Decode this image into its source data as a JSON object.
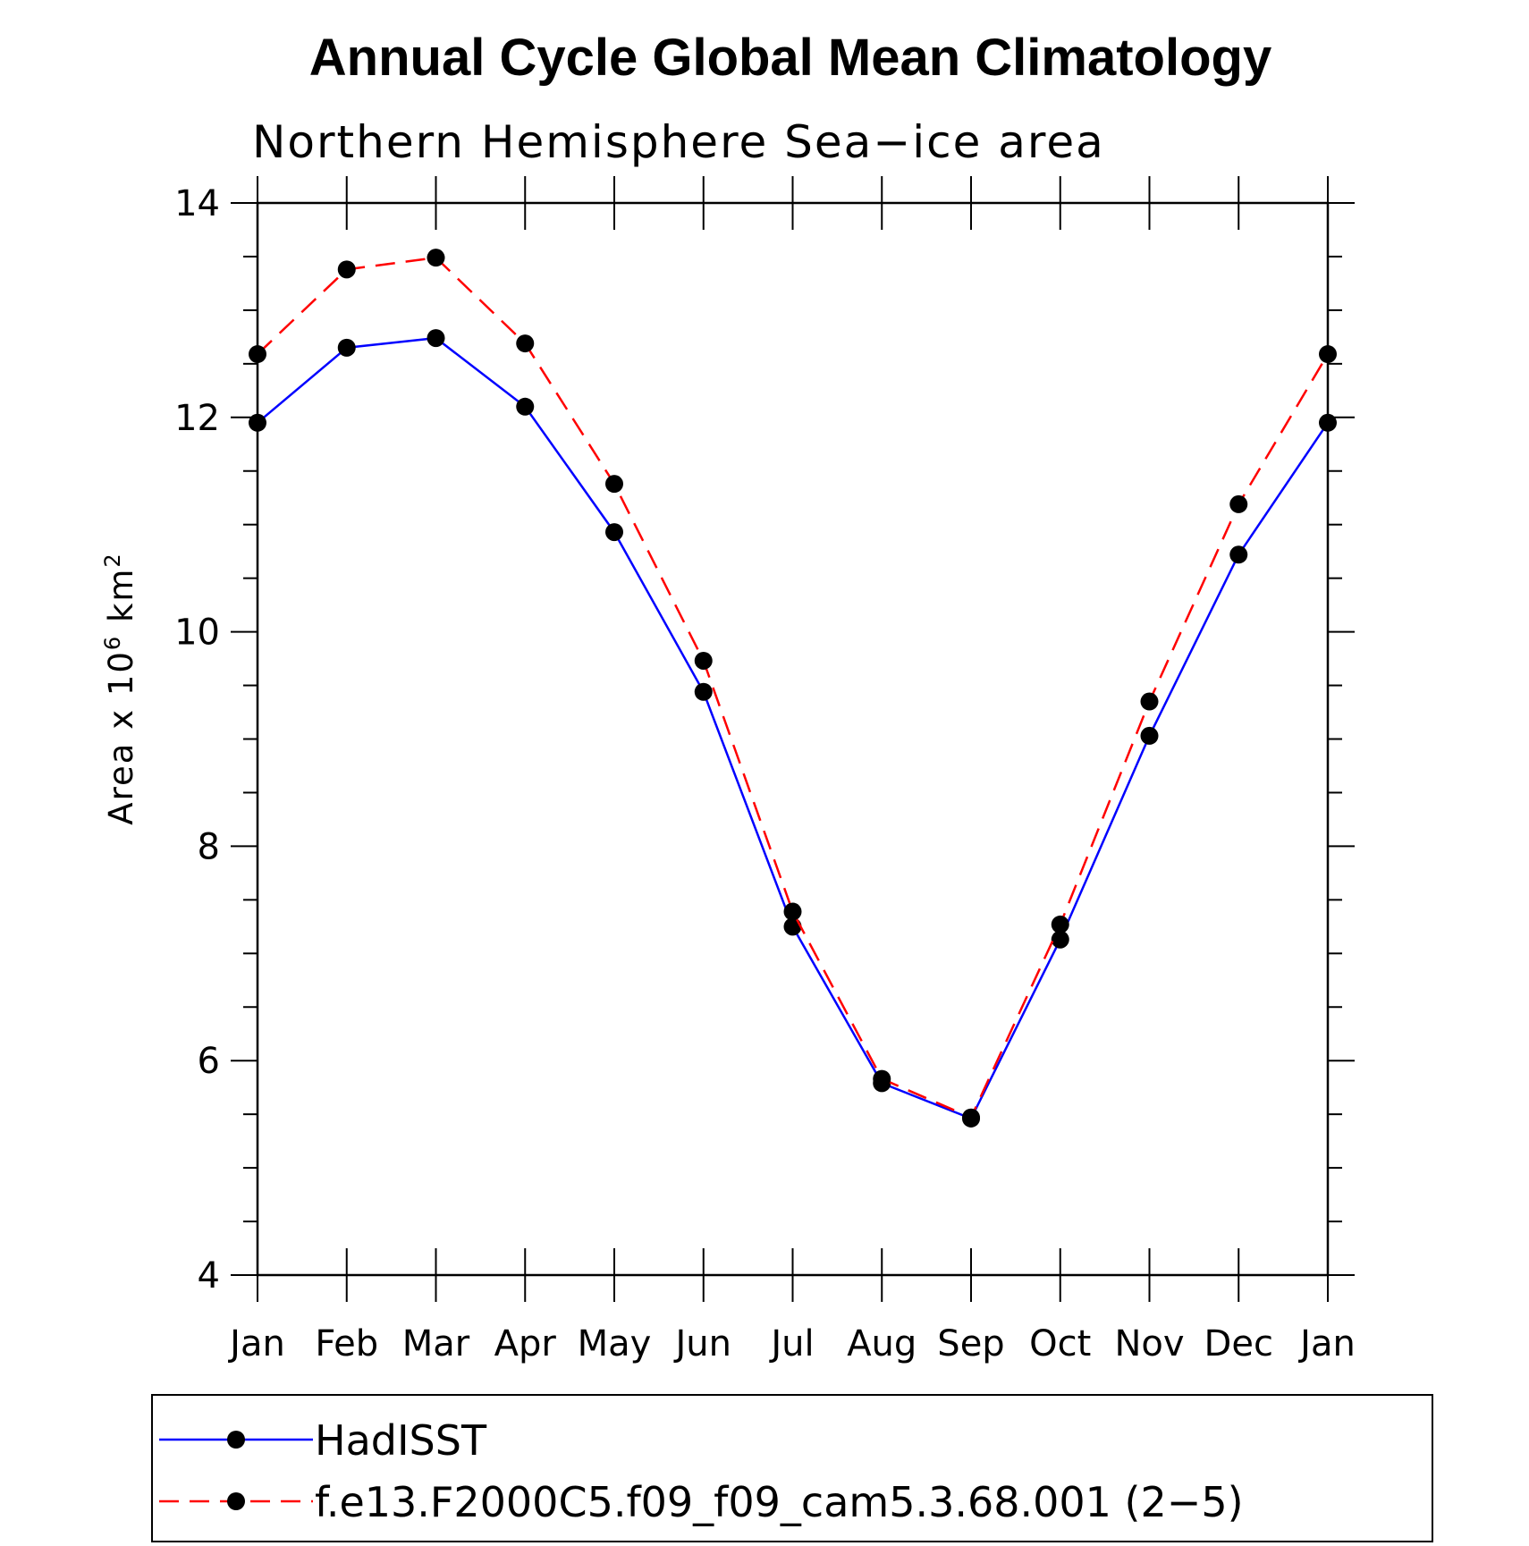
{
  "chart_data": {
    "type": "line",
    "title": "Annual Cycle Global Mean Climatology",
    "subtitle": "Northern Hemisphere Sea−ice area",
    "ylabel_prefix": "Area x 10",
    "ylabel_exp1": "6",
    "ylabel_unit": " km",
    "ylabel_exp2": "2",
    "x": [
      "Jan",
      "Feb",
      "Mar",
      "Apr",
      "May",
      "Jun",
      "Jul",
      "Aug",
      "Sep",
      "Oct",
      "Nov",
      "Dec",
      "Jan"
    ],
    "ylim": [
      4,
      14
    ],
    "yticks": [
      4,
      6,
      8,
      10,
      12,
      14
    ],
    "series": [
      {
        "name": "HadISST",
        "color": "#0000ff",
        "dash": "solid",
        "values": [
          11.95,
          12.65,
          12.74,
          12.1,
          10.93,
          9.44,
          7.25,
          5.79,
          5.46,
          7.13,
          9.03,
          10.72,
          11.95
        ]
      },
      {
        "name": "f.e13.F2000C5.f09_f09_cam5.3.68.001 (2−5)",
        "color": "#ff0000",
        "dash": "dashed",
        "values": [
          12.59,
          13.38,
          13.49,
          12.69,
          11.38,
          9.73,
          7.39,
          5.83,
          5.47,
          7.27,
          9.35,
          11.19,
          12.59
        ]
      }
    ],
    "grid": false,
    "legend_position": "bottom"
  }
}
